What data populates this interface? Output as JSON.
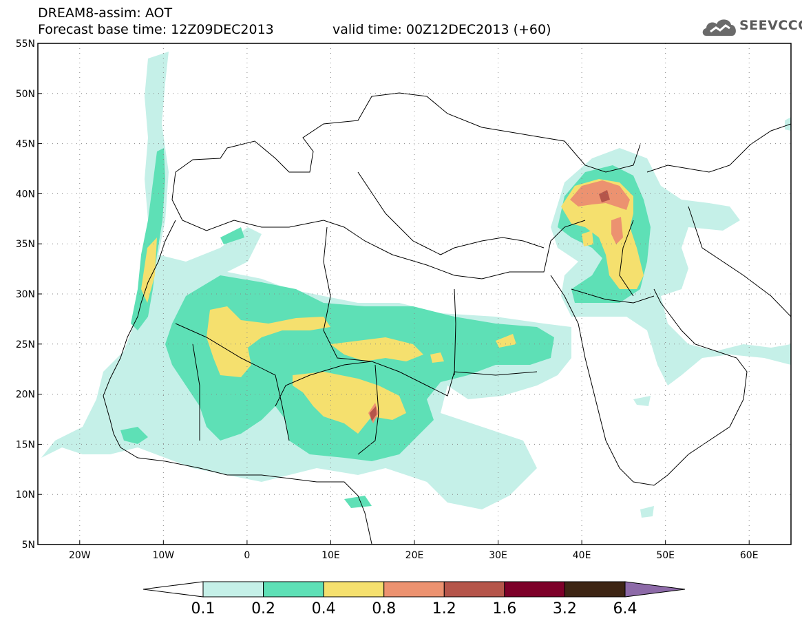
{
  "header": {
    "title": "DREAM8-assim: AOT",
    "base_time": "Forecast base time: 12Z09DEC2013",
    "valid_time": "valid time: 00Z12DEC2013 (+60)"
  },
  "logo": {
    "text": "SEEVCCC",
    "icon": "cloud-icon"
  },
  "map": {
    "lon_range": [
      -25,
      65
    ],
    "lat_range": [
      5,
      55
    ],
    "lat_ticks": [
      {
        "lat": 55,
        "label": "55N"
      },
      {
        "lat": 50,
        "label": "50N"
      },
      {
        "lat": 45,
        "label": "45N"
      },
      {
        "lat": 40,
        "label": "40N"
      },
      {
        "lat": 35,
        "label": "35N"
      },
      {
        "lat": 30,
        "label": "30N"
      },
      {
        "lat": 25,
        "label": "25N"
      },
      {
        "lat": 20,
        "label": "20N"
      },
      {
        "lat": 15,
        "label": "15N"
      },
      {
        "lat": 10,
        "label": "10N"
      },
      {
        "lat": 5,
        "label": "5N"
      }
    ],
    "lon_ticks": [
      {
        "lon": -20,
        "label": "20W"
      },
      {
        "lon": -10,
        "label": "10W"
      },
      {
        "lon": 0,
        "label": "0"
      },
      {
        "lon": 10,
        "label": "10E"
      },
      {
        "lon": 20,
        "label": "20E"
      },
      {
        "lon": 30,
        "label": "30E"
      },
      {
        "lon": 40,
        "label": "40E"
      },
      {
        "lon": 50,
        "label": "50E"
      },
      {
        "lon": 60,
        "label": "60E"
      }
    ]
  },
  "colorbar": {
    "colors": [
      "#ffffff",
      "#c5f0e8",
      "#5ee0b6",
      "#f5e06e",
      "#ec9270",
      "#b5554a",
      "#7d0029",
      "#3d2514",
      "#8d6aa8"
    ],
    "labels": [
      "0.1",
      "0.2",
      "0.4",
      "0.8",
      "1.2",
      "1.6",
      "3.2",
      "6.4"
    ]
  },
  "colors": {
    "c1": "#c5f0e8",
    "c2": "#5ee0b6",
    "c3": "#f5e06e",
    "c4": "#ec9270",
    "c5": "#b5554a"
  }
}
